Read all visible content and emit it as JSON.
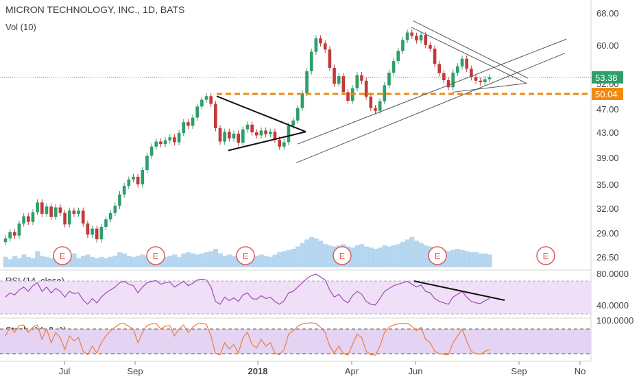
{
  "header": {
    "symbol_title": "MICRON TECHNOLOGY, INC., 1D, BATS",
    "volume_label": "Vol (10)",
    "rsi_label": "RSI (14, close)",
    "stoch_label": "Stoch (14, 3, 1)"
  },
  "colors": {
    "up": "#2e9e6a",
    "down": "#c23a3a",
    "orange": "#f08a12",
    "rsi_line": "#a04ab5",
    "rsi_band": "#efe0f7",
    "stoch_line": "#f07c3a",
    "stoch_band": "#e4d3f3",
    "volume": "#a9d0ec",
    "earnings": "#e05a5a",
    "last_price": "#2e9e6a"
  },
  "chart_data": {
    "type": "candlestick",
    "price_axis_ticks": [
      "68.00",
      "60.00",
      "52.00",
      "47.00",
      "43.00",
      "39.00",
      "35.00",
      "32.00",
      "29.00",
      "26.50"
    ],
    "price_axis_ticks_values": [
      68,
      60,
      52,
      47,
      43,
      39,
      35,
      32,
      29,
      26.5
    ],
    "last_price_label": "53.38",
    "last_price": 53.38,
    "level_label": "50.04",
    "level_price": 50.04,
    "time_axis_ticks": [
      "Jul",
      "Sep",
      "2018",
      "Apr",
      "Jun",
      "Sep",
      "No"
    ],
    "earnings_markers": [
      "E",
      "E",
      "E",
      "E",
      "E",
      "E"
    ],
    "rsi_axis_ticks": [
      "80.0000",
      "40.0000"
    ],
    "stoch_axis_ticks": [
      "100.0000"
    ],
    "price_series": [
      28.5,
      29.2,
      28.8,
      30.2,
      31.1,
      30.4,
      31.6,
      32.8,
      31.4,
      32.3,
      31.0,
      32.2,
      31.5,
      30.1,
      31.8,
      31.4,
      31.8,
      30.2,
      28.9,
      29.6,
      28.4,
      29.8,
      30.7,
      31.5,
      32.4,
      33.8,
      34.9,
      35.8,
      36.2,
      35.1,
      37.2,
      39.4,
      40.8,
      41.6,
      41.2,
      41.8,
      42.3,
      41.5,
      43.0,
      44.8,
      44.2,
      45.6,
      47.6,
      48.9,
      49.6,
      48.1,
      43.8,
      41.6,
      43.2,
      42.1,
      42.9,
      41.4,
      43.6,
      44.4,
      43.1,
      42.6,
      43.4,
      42.8,
      43.2,
      41.9,
      40.8,
      41.5,
      44.2,
      45.1,
      47.3,
      50.2,
      54.6,
      58.7,
      61.8,
      60.6,
      59.2,
      55.3,
      52.1,
      53.6,
      50.4,
      48.7,
      51.2,
      53.8,
      52.7,
      49.5,
      47.3,
      46.8,
      48.6,
      51.8,
      54.3,
      56.7,
      58.9,
      61.4,
      63.2,
      62.4,
      61.3,
      62.6,
      60.2,
      59.4,
      56.1,
      54.2,
      52.8,
      51.4,
      54.3,
      55.6,
      57.2,
      55.1,
      53.4,
      52.7,
      52.4,
      53.0,
      53.38
    ],
    "volume_series": [
      0.9,
      0.7,
      1.0,
      0.8,
      1.1,
      0.9,
      0.8,
      1.4,
      1.0,
      0.9,
      0.8,
      0.9,
      1.0,
      0.9,
      0.8,
      1.2,
      0.8,
      1.0,
      1.1,
      0.9,
      0.8,
      0.9,
      0.8,
      0.9,
      1.0,
      1.3,
      1.2,
      1.0,
      0.9,
      1.0,
      1.1,
      1.0,
      0.9,
      1.0,
      1.1,
      0.9,
      1.0,
      1.1,
      0.9,
      1.2,
      1.3,
      1.2,
      1.1,
      1.2,
      1.3,
      1.4,
      1.6,
      1.2,
      1.0,
      1.1,
      1.0,
      0.9,
      1.1,
      1.0,
      0.9,
      1.0,
      1.1,
      1.0,
      0.9,
      1.1,
      1.3,
      1.4,
      1.5,
      1.6,
      1.8,
      2.1,
      2.4,
      2.6,
      2.5,
      2.3,
      2.0,
      1.9,
      1.8,
      1.9,
      2.0,
      1.8,
      1.7,
      1.9,
      2.0,
      1.8,
      1.7,
      1.6,
      1.7,
      1.9,
      1.8,
      1.9,
      2.0,
      2.2,
      2.4,
      2.6,
      2.3,
      2.1,
      1.9,
      1.8,
      1.7,
      1.6,
      1.5,
      1.4,
      1.5,
      1.6,
      1.5,
      1.4,
      1.3,
      1.3,
      1.2,
      1.2,
      1.1
    ],
    "rsi_series": [
      52,
      58,
      55,
      62,
      66,
      60,
      68,
      72,
      60,
      66,
      58,
      64,
      60,
      52,
      60,
      57,
      58,
      48,
      42,
      50,
      44,
      52,
      58,
      62,
      66,
      72,
      74,
      70,
      68,
      58,
      66,
      72,
      74,
      75,
      70,
      72,
      73,
      66,
      70,
      74,
      68,
      71,
      76,
      77,
      76,
      66,
      46,
      42,
      52,
      47,
      51,
      46,
      55,
      58,
      50,
      49,
      54,
      50,
      52,
      46,
      42,
      47,
      58,
      60,
      66,
      72,
      78,
      82,
      84,
      80,
      76,
      62,
      52,
      56,
      48,
      44,
      54,
      60,
      56,
      46,
      42,
      41,
      50,
      60,
      64,
      68,
      70,
      72,
      74,
      70,
      66,
      69,
      60,
      58,
      50,
      46,
      44,
      42,
      52,
      56,
      60,
      52,
      46,
      44,
      43,
      47,
      50
    ],
    "stoch_series": [
      60,
      85,
      70,
      90,
      92,
      70,
      85,
      92,
      50,
      80,
      40,
      70,
      55,
      20,
      60,
      45,
      55,
      15,
      5,
      30,
      10,
      40,
      60,
      75,
      85,
      95,
      96,
      88,
      80,
      40,
      70,
      90,
      95,
      96,
      80,
      88,
      90,
      60,
      80,
      92,
      70,
      85,
      95,
      96,
      94,
      60,
      8,
      5,
      40,
      22,
      35,
      10,
      55,
      70,
      35,
      25,
      50,
      30,
      40,
      10,
      5,
      20,
      65,
      75,
      88,
      95,
      97,
      98,
      96,
      85,
      70,
      30,
      10,
      30,
      8,
      4,
      35,
      65,
      55,
      15,
      5,
      4,
      30,
      70,
      85,
      92,
      95,
      96,
      97,
      88,
      75,
      85,
      50,
      40,
      15,
      8,
      6,
      5,
      40,
      60,
      80,
      45,
      15,
      8,
      6,
      15,
      20
    ]
  }
}
